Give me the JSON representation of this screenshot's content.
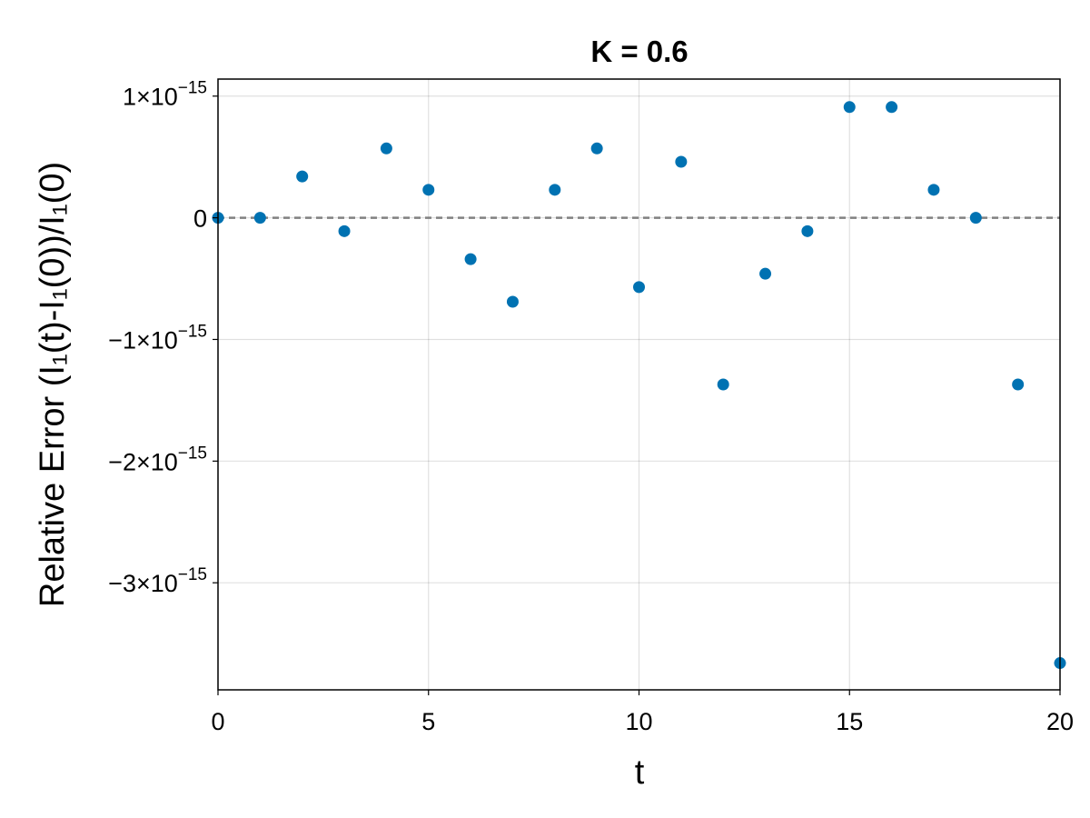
{
  "chart_data": {
    "type": "scatter",
    "title": "K = 0.6",
    "xlabel": "t",
    "ylabel": "Relative Error (I₁(t)-I₁(0))/I₁(0)",
    "xlim": [
      0,
      20
    ],
    "ylim": [
      -3.88e-15,
      1.14e-15
    ],
    "xticks": [
      0,
      5,
      10,
      15,
      20
    ],
    "xtick_labels": [
      "0",
      "5",
      "10",
      "15",
      "20"
    ],
    "yticks": [
      1e-15,
      0,
      -1e-15,
      -2e-15,
      -3e-15
    ],
    "ytick_labels": [
      {
        "mant": "1×10",
        "exp": "−15"
      },
      {
        "mant": "0",
        "exp": ""
      },
      {
        "mant": "−1×10",
        "exp": "−15"
      },
      {
        "mant": "−2×10",
        "exp": "−15"
      },
      {
        "mant": "−3×10",
        "exp": "−15"
      }
    ],
    "grid": true,
    "reference_line": {
      "y": 0,
      "style": "dashed",
      "color": "#808080"
    },
    "series": [
      {
        "color": "#0072b2",
        "x": [
          0,
          1,
          2,
          3,
          4,
          5,
          6,
          7,
          8,
          9,
          10,
          11,
          12,
          13,
          14,
          15,
          16,
          17,
          18,
          19,
          20
        ],
        "y": [
          0,
          0,
          3.4e-16,
          -1.1e-16,
          5.7e-16,
          2.3e-16,
          -3.4e-16,
          -6.9e-16,
          2.3e-16,
          5.7e-16,
          -5.7e-16,
          4.6e-16,
          -1.37e-15,
          -4.6e-16,
          -1.1e-16,
          9.1e-16,
          9.1e-16,
          2.3e-16,
          0,
          -1.37e-15,
          -3.66e-15
        ]
      }
    ]
  }
}
